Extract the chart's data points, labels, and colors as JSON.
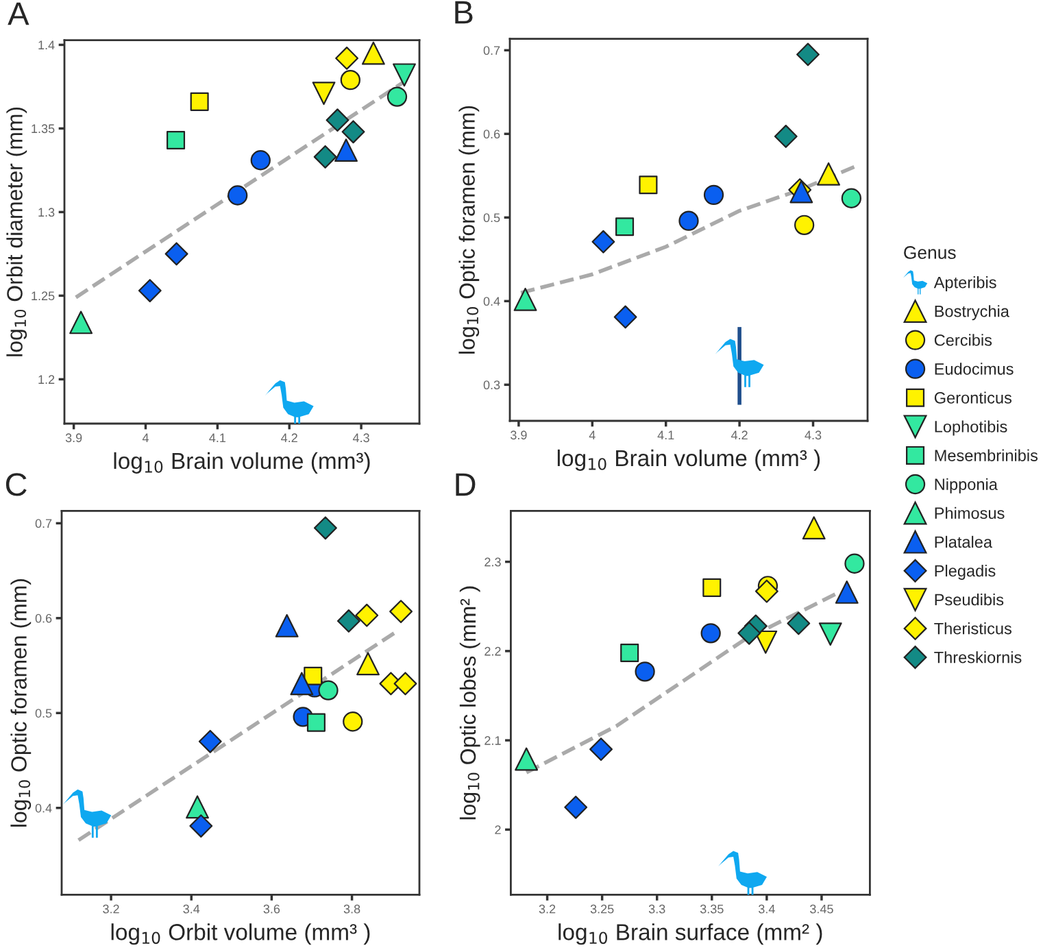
{
  "chart_data": [
    {
      "type": "scatter",
      "title": "A",
      "xlabel": "log$_{10}$ Brain volume (mm³)",
      "ylabel": "log$_{10}$ Orbit diameter (mm)",
      "legend": "right",
      "legend_title": "Genus",
      "grid": false,
      "xlim": [
        3.887,
        4.381
      ],
      "ylim": [
        1.1735,
        1.4028
      ],
      "xticks": [
        3.9,
        4,
        4.1,
        4.2,
        4.3
      ],
      "yticks": [
        1.2,
        1.25,
        1.3,
        1.35,
        1.4
      ],
      "series": [
        {
          "name": "Apteribis",
          "color": "#0fa8f0",
          "x": [
            4.2
          ],
          "values": [
            1.185
          ]
        },
        {
          "name": "Bostrychia",
          "color": "#fff200",
          "marker": "triangle",
          "x": [
            4.317
          ],
          "values": [
            1.395
          ]
        },
        {
          "name": "Cercibis",
          "color": "#fff200",
          "marker": "circle",
          "x": [
            4.285
          ],
          "values": [
            1.379
          ]
        },
        {
          "name": "Eudocimus",
          "color": "#0a5ff0",
          "marker": "circle",
          "x": [
            4.16,
            4.128
          ],
          "values": [
            1.331,
            1.31
          ]
        },
        {
          "name": "Geronticus",
          "color": "#fff200",
          "marker": "square",
          "x": [
            4.075
          ],
          "values": [
            1.366
          ]
        },
        {
          "name": "Lophotibis",
          "color": "#33e8a0",
          "marker": "triangle_down",
          "x": [
            4.36
          ],
          "values": [
            1.382
          ]
        },
        {
          "name": "Mesembrinibis",
          "color": "#33e8a0",
          "marker": "square",
          "x": [
            4.042
          ],
          "values": [
            1.343
          ]
        },
        {
          "name": "Nipponia",
          "color": "#33e8a0",
          "marker": "circle",
          "x": [
            4.35
          ],
          "values": [
            1.369
          ]
        },
        {
          "name": "Phimosus",
          "color": "#33e8a0",
          "marker": "triangle",
          "x": [
            3.91
          ],
          "values": [
            1.234
          ]
        },
        {
          "name": "Platalea",
          "color": "#0a5ff0",
          "marker": "triangle",
          "x": [
            4.279
          ],
          "values": [
            1.337
          ]
        },
        {
          "name": "Plegadis",
          "color": "#0a5ff0",
          "marker": "diamond",
          "x": [
            4.043,
            4.006
          ],
          "values": [
            1.275,
            1.253
          ]
        },
        {
          "name": "Pseudibis",
          "color": "#fff200",
          "marker": "triangle_down",
          "x": [
            4.248
          ],
          "values": [
            1.371
          ]
        },
        {
          "name": "Theristicus",
          "color": "#fff200",
          "marker": "diamond",
          "x": [
            4.28
          ],
          "values": [
            1.392
          ]
        },
        {
          "name": "Threskiornis",
          "color": "#138a85",
          "marker": "diamond",
          "x": [
            4.267,
            4.289,
            4.25
          ],
          "values": [
            1.355,
            1.348,
            1.333
          ]
        },
        {
          "type": "line",
          "color": "#aaaaaa",
          "line_style": "dashed",
          "marker": "none",
          "x": [
            3.903,
            4.36
          ],
          "values": [
            1.249,
            1.378
          ]
        }
      ]
    },
    {
      "type": "scatter",
      "title": "B",
      "xlabel": "log$_{10}$ Brain volume (mm³ )",
      "ylabel": "log$_{10}$ Optic foramen (mm)",
      "grid": false,
      "xlim": [
        3.888,
        4.374
      ],
      "ylim": [
        0.2568,
        0.7137
      ],
      "xticks": [
        3.9,
        4,
        4.1,
        4.2,
        4.3
      ],
      "yticks": [
        0.3,
        0.4,
        0.5,
        0.6,
        0.7
      ],
      "series": [
        {
          "name": "Apteribis",
          "color": "#0fa8f0",
          "x": [
            4.2
          ],
          "values": [
            0.326
          ],
          "errors": [
            [
              0.276,
              0.369
            ]
          ]
        },
        {
          "name": "Bostrychia",
          "color": "#fff200",
          "marker": "triangle",
          "x": [
            4.321
          ],
          "values": [
            0.552
          ]
        },
        {
          "name": "Cercibis",
          "color": "#fff200",
          "marker": "circle",
          "x": [
            4.288
          ],
          "values": [
            0.491
          ]
        },
        {
          "name": "Eudocimus",
          "color": "#0a5ff0",
          "marker": "circle",
          "x": [
            4.165,
            4.131
          ],
          "values": [
            0.527,
            0.496
          ]
        },
        {
          "name": "Geronticus",
          "color": "#fff200",
          "marker": "square",
          "x": [
            4.076
          ],
          "values": [
            0.539
          ]
        },
        {
          "name": "Mesembrinibis",
          "color": "#33e8a0",
          "marker": "square",
          "x": [
            4.044
          ],
          "values": [
            0.489
          ]
        },
        {
          "name": "Nipponia",
          "color": "#33e8a0",
          "marker": "circle",
          "x": [
            4.352
          ],
          "values": [
            0.523
          ]
        },
        {
          "name": "Phimosus",
          "color": "#33e8a0",
          "marker": "triangle",
          "x": [
            3.909
          ],
          "values": [
            0.402
          ]
        },
        {
          "name": "Theristicus",
          "color": "#fff200",
          "marker": "diamond",
          "x": [
            4.282
          ],
          "values": [
            0.533
          ]
        },
        {
          "name": "Platalea",
          "color": "#0a5ff0",
          "marker": "triangle",
          "x": [
            4.284
          ],
          "values": [
            0.531
          ]
        },
        {
          "name": "Plegadis",
          "color": "#0a5ff0",
          "marker": "diamond",
          "x": [
            4.015,
            4.045
          ],
          "values": [
            0.471,
            0.381
          ]
        },
        {
          "name": "Threskiornis",
          "color": "#138a85",
          "marker": "diamond",
          "x": [
            4.293,
            4.263
          ],
          "values": [
            0.695,
            0.597
          ]
        },
        {
          "type": "line",
          "color": "#aaaaaa",
          "line_style": "dashed",
          "marker": "none",
          "x": [
            3.903,
            4.0,
            4.1,
            4.2,
            4.282,
            4.36
          ],
          "values": [
            0.41,
            0.432,
            0.465,
            0.508,
            0.533,
            0.562
          ]
        }
      ]
    },
    {
      "type": "scatter",
      "title": "C",
      "xlabel": "log$_{10}$ Orbit volume (mm³ )",
      "ylabel": "log$_{10}$ Optic foramen (mm)",
      "grid": false,
      "xlim": [
        3.077,
        3.968
      ],
      "ylim": [
        0.3085,
        0.713
      ],
      "xticks": [
        3.2,
        3.4,
        3.6,
        3.8
      ],
      "yticks": [
        0.4,
        0.5,
        0.6,
        0.7
      ],
      "series": [
        {
          "name": "Apteribis",
          "color": "#0fa8f0",
          "x": [
            3.14
          ],
          "values": [
            0.394
          ]
        },
        {
          "name": "Bostrychia",
          "color": "#fff200",
          "marker": "triangle",
          "x": [
            3.84
          ],
          "values": [
            0.552
          ]
        },
        {
          "name": "Cercibis",
          "color": "#fff200",
          "marker": "circle",
          "x": [
            3.802
          ],
          "values": [
            0.491
          ]
        },
        {
          "name": "Eudocimus",
          "color": "#0a5ff0",
          "marker": "circle",
          "x": [
            3.707,
            3.678
          ],
          "values": [
            0.527,
            0.496
          ]
        },
        {
          "name": "Geronticus",
          "color": "#fff200",
          "marker": "square",
          "x": [
            3.703
          ],
          "values": [
            0.539
          ]
        },
        {
          "name": "Mesembrinibis",
          "color": "#33e8a0",
          "marker": "square",
          "x": [
            3.711
          ],
          "values": [
            0.49
          ]
        },
        {
          "name": "Nipponia",
          "color": "#33e8a0",
          "marker": "circle",
          "x": [
            3.741
          ],
          "values": [
            0.524
          ]
        },
        {
          "name": "Phimosus",
          "color": "#33e8a0",
          "marker": "triangle",
          "x": [
            3.415
          ],
          "values": [
            0.401
          ]
        },
        {
          "name": "Platalea",
          "color": "#0a5ff0",
          "marker": "triangle",
          "x": [
            3.638,
            3.675
          ],
          "values": [
            0.592,
            0.531
          ]
        },
        {
          "name": "Plegadis",
          "color": "#0a5ff0",
          "marker": "diamond",
          "x": [
            3.447,
            3.424
          ],
          "values": [
            0.47,
            0.381
          ]
        },
        {
          "name": "Theristicus",
          "color": "#fff200",
          "marker": "diamond",
          "x": [
            3.837,
            3.922,
            3.897,
            3.933
          ],
          "values": [
            0.603,
            0.607,
            0.531,
            0.531
          ]
        },
        {
          "name": "Threskiornis",
          "color": "#138a85",
          "marker": "diamond",
          "x": [
            3.734,
            3.792
          ],
          "values": [
            0.695,
            0.597
          ]
        },
        {
          "type": "line",
          "color": "#aaaaaa",
          "line_style": "dashed",
          "marker": "none",
          "x": [
            3.119,
            3.908
          ],
          "values": [
            0.366,
            0.585
          ]
        }
      ]
    },
    {
      "type": "scatter",
      "title": "D",
      "xlabel": "log$_{10}$ Brain surface (mm² )",
      "ylabel": "log$_{10}$ Optic lobes (mm² )",
      "grid": false,
      "xlim": [
        3.1668,
        3.494
      ],
      "ylim": [
        1.927,
        2.357
      ],
      "xticks": [
        3.2,
        3.25,
        3.3,
        3.35,
        3.4,
        3.45
      ],
      "yticks": [
        2,
        2.1,
        2.2,
        2.3
      ],
      "series": [
        {
          "name": "Apteribis",
          "color": "#0fa8f0",
          "x": [
            3.378
          ],
          "values": [
            1.949
          ]
        },
        {
          "name": "Bostrychia",
          "color": "#fff200",
          "marker": "triangle",
          "x": [
            3.443
          ],
          "values": [
            2.338
          ]
        },
        {
          "name": "Cercibis",
          "color": "#fff200",
          "marker": "circle",
          "x": [
            3.401
          ],
          "values": [
            2.273
          ]
        },
        {
          "name": "Eudocimus",
          "color": "#0a5ff0",
          "marker": "circle",
          "x": [
            3.349,
            3.289
          ],
          "values": [
            2.22,
            2.177
          ]
        },
        {
          "name": "Geronticus",
          "color": "#fff200",
          "marker": "square",
          "x": [
            3.35
          ],
          "values": [
            2.271
          ]
        },
        {
          "name": "Lophotibis",
          "color": "#33e8a0",
          "marker": "triangle_down",
          "x": [
            3.458
          ],
          "values": [
            2.219
          ]
        },
        {
          "name": "Mesembrinibis",
          "color": "#33e8a0",
          "marker": "square",
          "x": [
            3.275
          ],
          "values": [
            2.198
          ]
        },
        {
          "name": "Nipponia",
          "color": "#33e8a0",
          "marker": "circle",
          "x": [
            3.48
          ],
          "values": [
            2.298
          ]
        },
        {
          "name": "Phimosus",
          "color": "#33e8a0",
          "marker": "triangle",
          "x": [
            3.181
          ],
          "values": [
            2.079
          ]
        },
        {
          "name": "Platalea",
          "color": "#0a5ff0",
          "marker": "triangle",
          "x": [
            3.473
          ],
          "values": [
            2.266
          ]
        },
        {
          "name": "Plegadis",
          "color": "#0a5ff0",
          "marker": "diamond",
          "x": [
            3.249,
            3.226
          ],
          "values": [
            2.09,
            2.025
          ]
        },
        {
          "name": "Pseudibis",
          "color": "#fff200",
          "marker": "triangle_down",
          "x": [
            3.399
          ],
          "values": [
            2.21
          ]
        },
        {
          "name": "Theristicus",
          "color": "#fff200",
          "marker": "diamond",
          "x": [
            3.4
          ],
          "values": [
            2.267
          ]
        },
        {
          "name": "Threskiornis",
          "color": "#138a85",
          "marker": "diamond",
          "x": [
            3.39,
            3.384,
            3.429
          ],
          "values": [
            2.228,
            2.22,
            2.231
          ]
        },
        {
          "type": "line",
          "color": "#aaaaaa",
          "line_style": "dashed",
          "marker": "none",
          "x": [
            3.181,
            3.263,
            3.38,
            3.463
          ],
          "values": [
            2.064,
            2.116,
            2.213,
            2.264
          ]
        }
      ]
    }
  ]
}
